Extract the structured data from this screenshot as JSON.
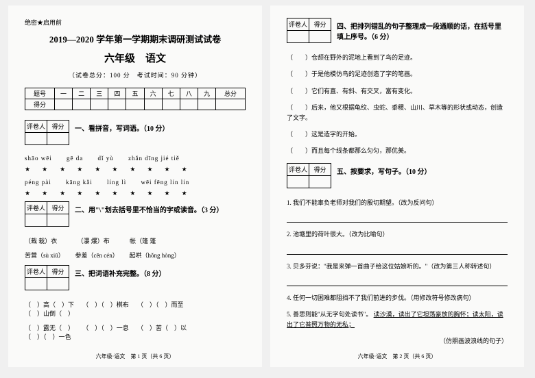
{
  "secret": "绝密★启用前",
  "title1": "2019—2020 学年第一学期期末调研测试试卷",
  "title2": "六年级　语文",
  "subtitle": "（试卷总分：100 分　考试时间：90 分钟）",
  "mainTable": {
    "headers": [
      "题号",
      "一",
      "二",
      "三",
      "四",
      "五",
      "六",
      "七",
      "八",
      "九",
      "总分"
    ],
    "row2": "得分"
  },
  "scoreBox": {
    "h1": "评卷人",
    "h2": "得分"
  },
  "sec1": "一、看拼音，写词语。（10 分）",
  "pinyin1": [
    "shāo wēi",
    "gē da",
    "dǐ yù",
    "zhǎn dīng jié tiě"
  ],
  "pinyin2": [
    "péng pài",
    "kāng kǎi",
    "líng lì",
    "wēi fēng lín lín"
  ],
  "pinyin3": "苦营（sù xiū）",
  "sec2": "二、用\"\\\"划去括号里不恰当的字或读音。（3 分）",
  "q2items": [
    "（裁 栽）衣",
    "（瀑 爆）布",
    "帐（篷 蓬",
    "参差（cēn cén）",
    "起哄（hǒng hòng）"
  ],
  "sec3": "三、把词语补充完整。（8 分）",
  "fill1": [
    "（　）高（　）下",
    "（　）（　）棋布",
    "（　）（　）而至",
    "（　）山倒（　）"
  ],
  "fill2": [
    "（　）露无（　）",
    "（　）（　）一息",
    "（　）苦（　）以",
    "（　）（　）一色"
  ],
  "footerL": "六年级·语文　第 1 页（共 6 页）",
  "sec4": "四、把排列错乱的句子整理成一段通顺的话，在括号里填上序号。（6 分）",
  "r4": {
    "a": "（　　）仓颉在野外的泥地上看到了鸟的足迹。",
    "b": "（　　）于是他模仿鸟的足迹创造了字的笔画。",
    "c": "（　　）它们有直、有斜、有交叉，富有变化。",
    "d": "（　　）后来，他又根据龟纹、虫蛇、黍稷、山川、草木等的形状或动态，创造了文字。",
    "e": "（　　）这是造字的开始。",
    "f": "（　　）而且每个线条都那么匀匀，那优美。"
  },
  "sec5": "五、按要求，写句子。（10 分）",
  "q5": {
    "a": "1. 我们不能辜负老师对我们的殷切期望。（改为反问句）",
    "b": "2. 池塘里的荷叶很大。（改为比喻句）",
    "c": "3. 贝多芬说：\"我是来弹一首曲子给这位姑娘听的。\"（改为第三人称转述句）",
    "d": "4. 任何一切困难都阻挡不了我们前进的步伐。（用修改符号修改病句）",
    "e1": "5. 善思则能\"从无字句处读书\"。",
    "e2": "读沙漠，读出了它坦荡豪放的胸怀；读太阳，读出了它普照万物的无私；",
    "e3": "（仿照画波浪线的句子）"
  },
  "footerR": "六年级·语文　第 2 页（共 6 页）"
}
